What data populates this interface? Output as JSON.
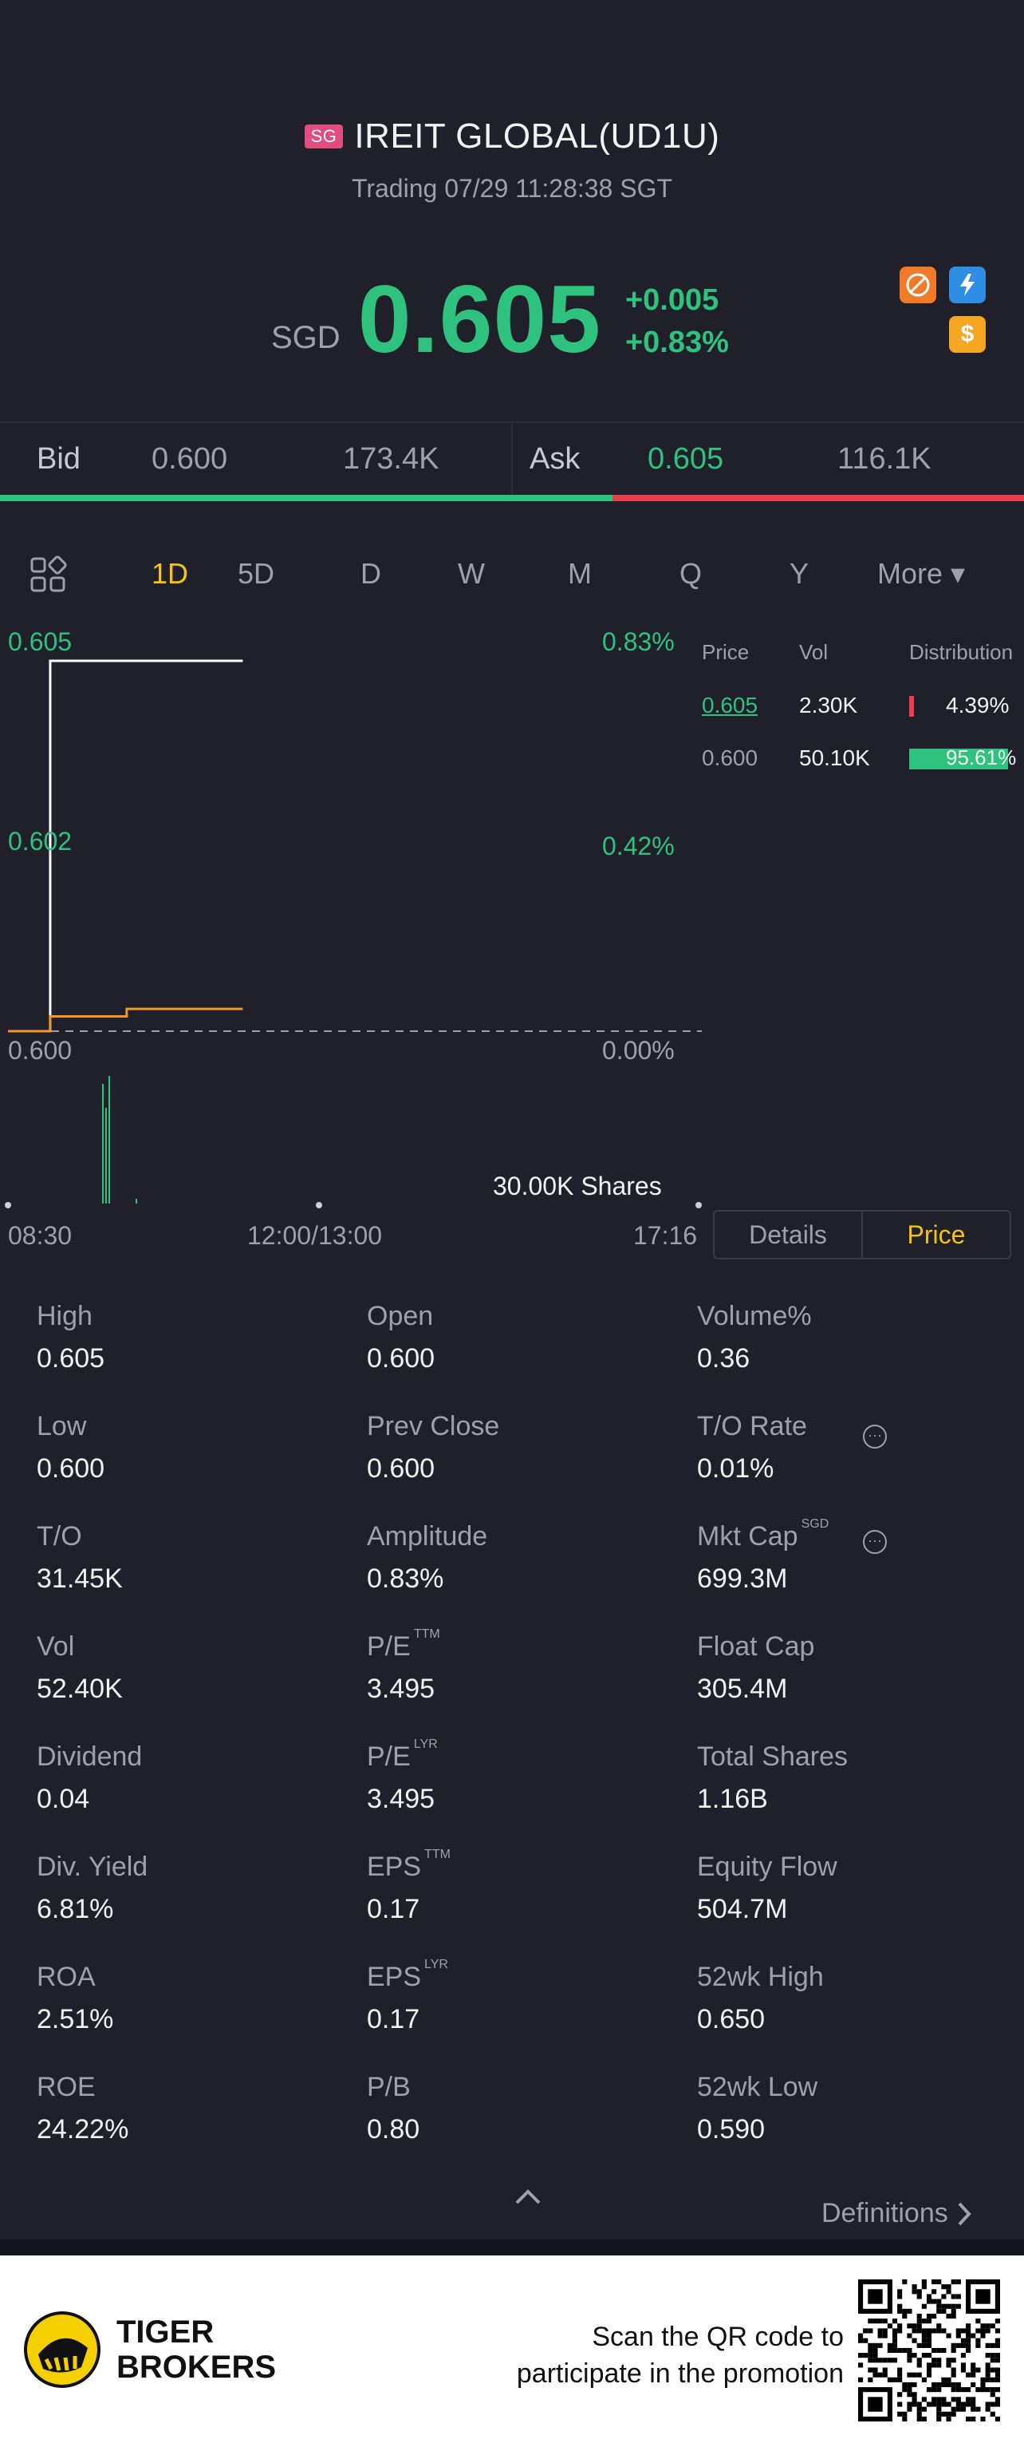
{
  "header": {
    "market_badge": "SG",
    "title": "IREIT GLOBAL(UD1U)",
    "status": "Trading 07/29 11:28:38 SGT"
  },
  "quote": {
    "currency": "SGD",
    "price": "0.605",
    "change": "+0.005",
    "change_pct": "+0.83%"
  },
  "icons": [
    "no-short-icon",
    "lightning-icon",
    "dollar-icon"
  ],
  "orderbook": {
    "bid_label": "Bid",
    "bid_price": "0.600",
    "bid_size": "173.4K",
    "ask_label": "Ask",
    "ask_price": "0.605",
    "ask_size": "116.1K",
    "bid_ratio": 0.598
  },
  "tabs": [
    "1D",
    "5D",
    "D",
    "W",
    "M",
    "Q",
    "Y",
    "More ▾"
  ],
  "active_tab": "1D",
  "chart": {
    "y_left": [
      "0.605",
      "0.602",
      "0.600"
    ],
    "y_right": [
      "0.83%",
      "0.42%",
      "0.00%"
    ],
    "x_labels": [
      "08:30",
      "12:00/13:00",
      "17:16"
    ],
    "volume_label": "30.00K Shares"
  },
  "chart_data": {
    "type": "line",
    "x": [
      "08:30",
      "09:01",
      "09:02",
      "10:00",
      "11:28"
    ],
    "series": [
      {
        "values": [
          0.6,
          0.6,
          0.605,
          0.605,
          0.605
        ]
      },
      {
        "values": [
          0.6,
          0.6,
          0.6002,
          0.6003,
          0.6003
        ]
      }
    ],
    "ylim": [
      0.6,
      0.605
    ],
    "prev_close": 0.6
  },
  "distribution": {
    "headers": [
      "Price",
      "Vol",
      "Distribution"
    ],
    "rows": [
      {
        "price": "0.605",
        "vol": "2.30K",
        "pct": "4.39%",
        "ratio": 0.0439,
        "color": "#e8404f"
      },
      {
        "price": "0.600",
        "vol": "50.10K",
        "pct": "95.61%",
        "ratio": 0.9561,
        "color": "#2ec27e"
      }
    ]
  },
  "toggle": {
    "details": "Details",
    "price": "Price"
  },
  "stats": [
    [
      {
        "label": "High",
        "value": "0.605"
      },
      {
        "label": "Open",
        "value": "0.600"
      },
      {
        "label": "Volume%",
        "value": "0.36"
      }
    ],
    [
      {
        "label": "Low",
        "value": "0.600"
      },
      {
        "label": "Prev Close",
        "value": "0.600"
      },
      {
        "label": "T/O Rate",
        "value": "0.01%"
      }
    ],
    [
      {
        "label": "T/O",
        "value": "31.45K"
      },
      {
        "label": "Amplitude",
        "value": "0.83%"
      },
      {
        "label": "Mkt Cap",
        "value": "699.3M",
        "sup": "SGD"
      }
    ],
    [
      {
        "label": "Vol",
        "value": "52.40K"
      },
      {
        "label": "P/E",
        "value": "3.495",
        "sup": "TTM"
      },
      {
        "label": "Float Cap",
        "value": "305.4M"
      }
    ],
    [
      {
        "label": "Dividend",
        "value": "0.04"
      },
      {
        "label": "P/E",
        "value": "3.495",
        "sup": "LYR"
      },
      {
        "label": "Total Shares",
        "value": "1.16B"
      }
    ],
    [
      {
        "label": "Div. Yield",
        "value": "6.81%"
      },
      {
        "label": "EPS",
        "value": "0.17",
        "sup": "TTM"
      },
      {
        "label": "Equity Flow",
        "value": "504.7M"
      }
    ],
    [
      {
        "label": "ROA",
        "value": "2.51%"
      },
      {
        "label": "EPS",
        "value": "0.17",
        "sup": "LYR"
      },
      {
        "label": "52wk High",
        "value": "0.650"
      }
    ],
    [
      {
        "label": "ROE",
        "value": "24.22%"
      },
      {
        "label": "P/B",
        "value": "0.80"
      },
      {
        "label": "52wk Low",
        "value": "0.590"
      }
    ]
  ],
  "definitions_label": "Definitions",
  "footer": {
    "brand_line1": "TIGER",
    "brand_line2": "BROKERS",
    "promo_line1": "Scan the QR code to",
    "promo_line2": "participate in the promotion"
  }
}
